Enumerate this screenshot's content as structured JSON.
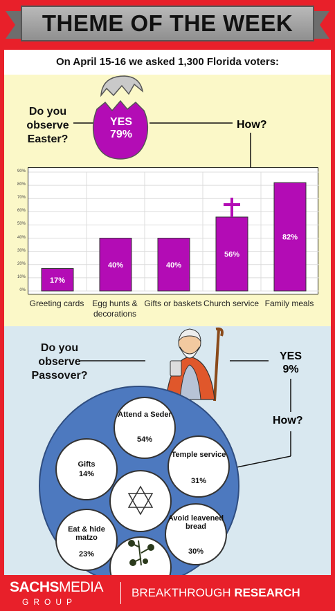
{
  "header": {
    "title": "THEME OF THE WEEK"
  },
  "intro": "On April 15-16 we asked 1,300 Florida voters:",
  "easter": {
    "question": "Do you observe Easter?",
    "yes_label": "YES",
    "yes_value": "79%",
    "how": "How?"
  },
  "chart_data": {
    "type": "bar",
    "categories": [
      "Greeting cards",
      "Egg hunts & decorations",
      "Gifts or baskets",
      "Church service",
      "Family meals"
    ],
    "values": [
      17,
      40,
      40,
      56,
      82
    ],
    "data_labels": [
      "17%",
      "40%",
      "40%",
      "56%",
      "82%"
    ],
    "y_ticks": [
      "0%",
      "10%",
      "20%",
      "30%",
      "40%",
      "50%",
      "60%",
      "70%",
      "80%",
      "90%"
    ],
    "ylim": [
      0,
      90
    ],
    "grid": true,
    "bar_color": "#b30cb5",
    "title": "",
    "xlabel": "",
    "ylabel": ""
  },
  "passover": {
    "question": "Do you observe Passover?",
    "yes_label": "YES",
    "yes_value": "9%",
    "how": "How?",
    "items": [
      {
        "label": "Attend a Seder",
        "value": "54%"
      },
      {
        "label": "Temple service",
        "value": "31%"
      },
      {
        "label": "Avoid leavened bread",
        "value": "30%"
      },
      {
        "label": "Eat & hide matzo",
        "value": "23%"
      },
      {
        "label": "Gifts",
        "value": "14%"
      }
    ]
  },
  "footer": {
    "logo_top_bold": "SACHS",
    "logo_top_light": "MEDIA",
    "logo_bottom": "GROUP",
    "tagline_light": "BREAKTHROUGH",
    "tagline_bold": "RESEARCH"
  },
  "colors": {
    "accent_red": "#e8202a",
    "purple": "#b30cb5",
    "plate_blue": "#4d79bf",
    "easter_bg": "#fbf8c8",
    "passover_bg": "#d9e8f0"
  }
}
